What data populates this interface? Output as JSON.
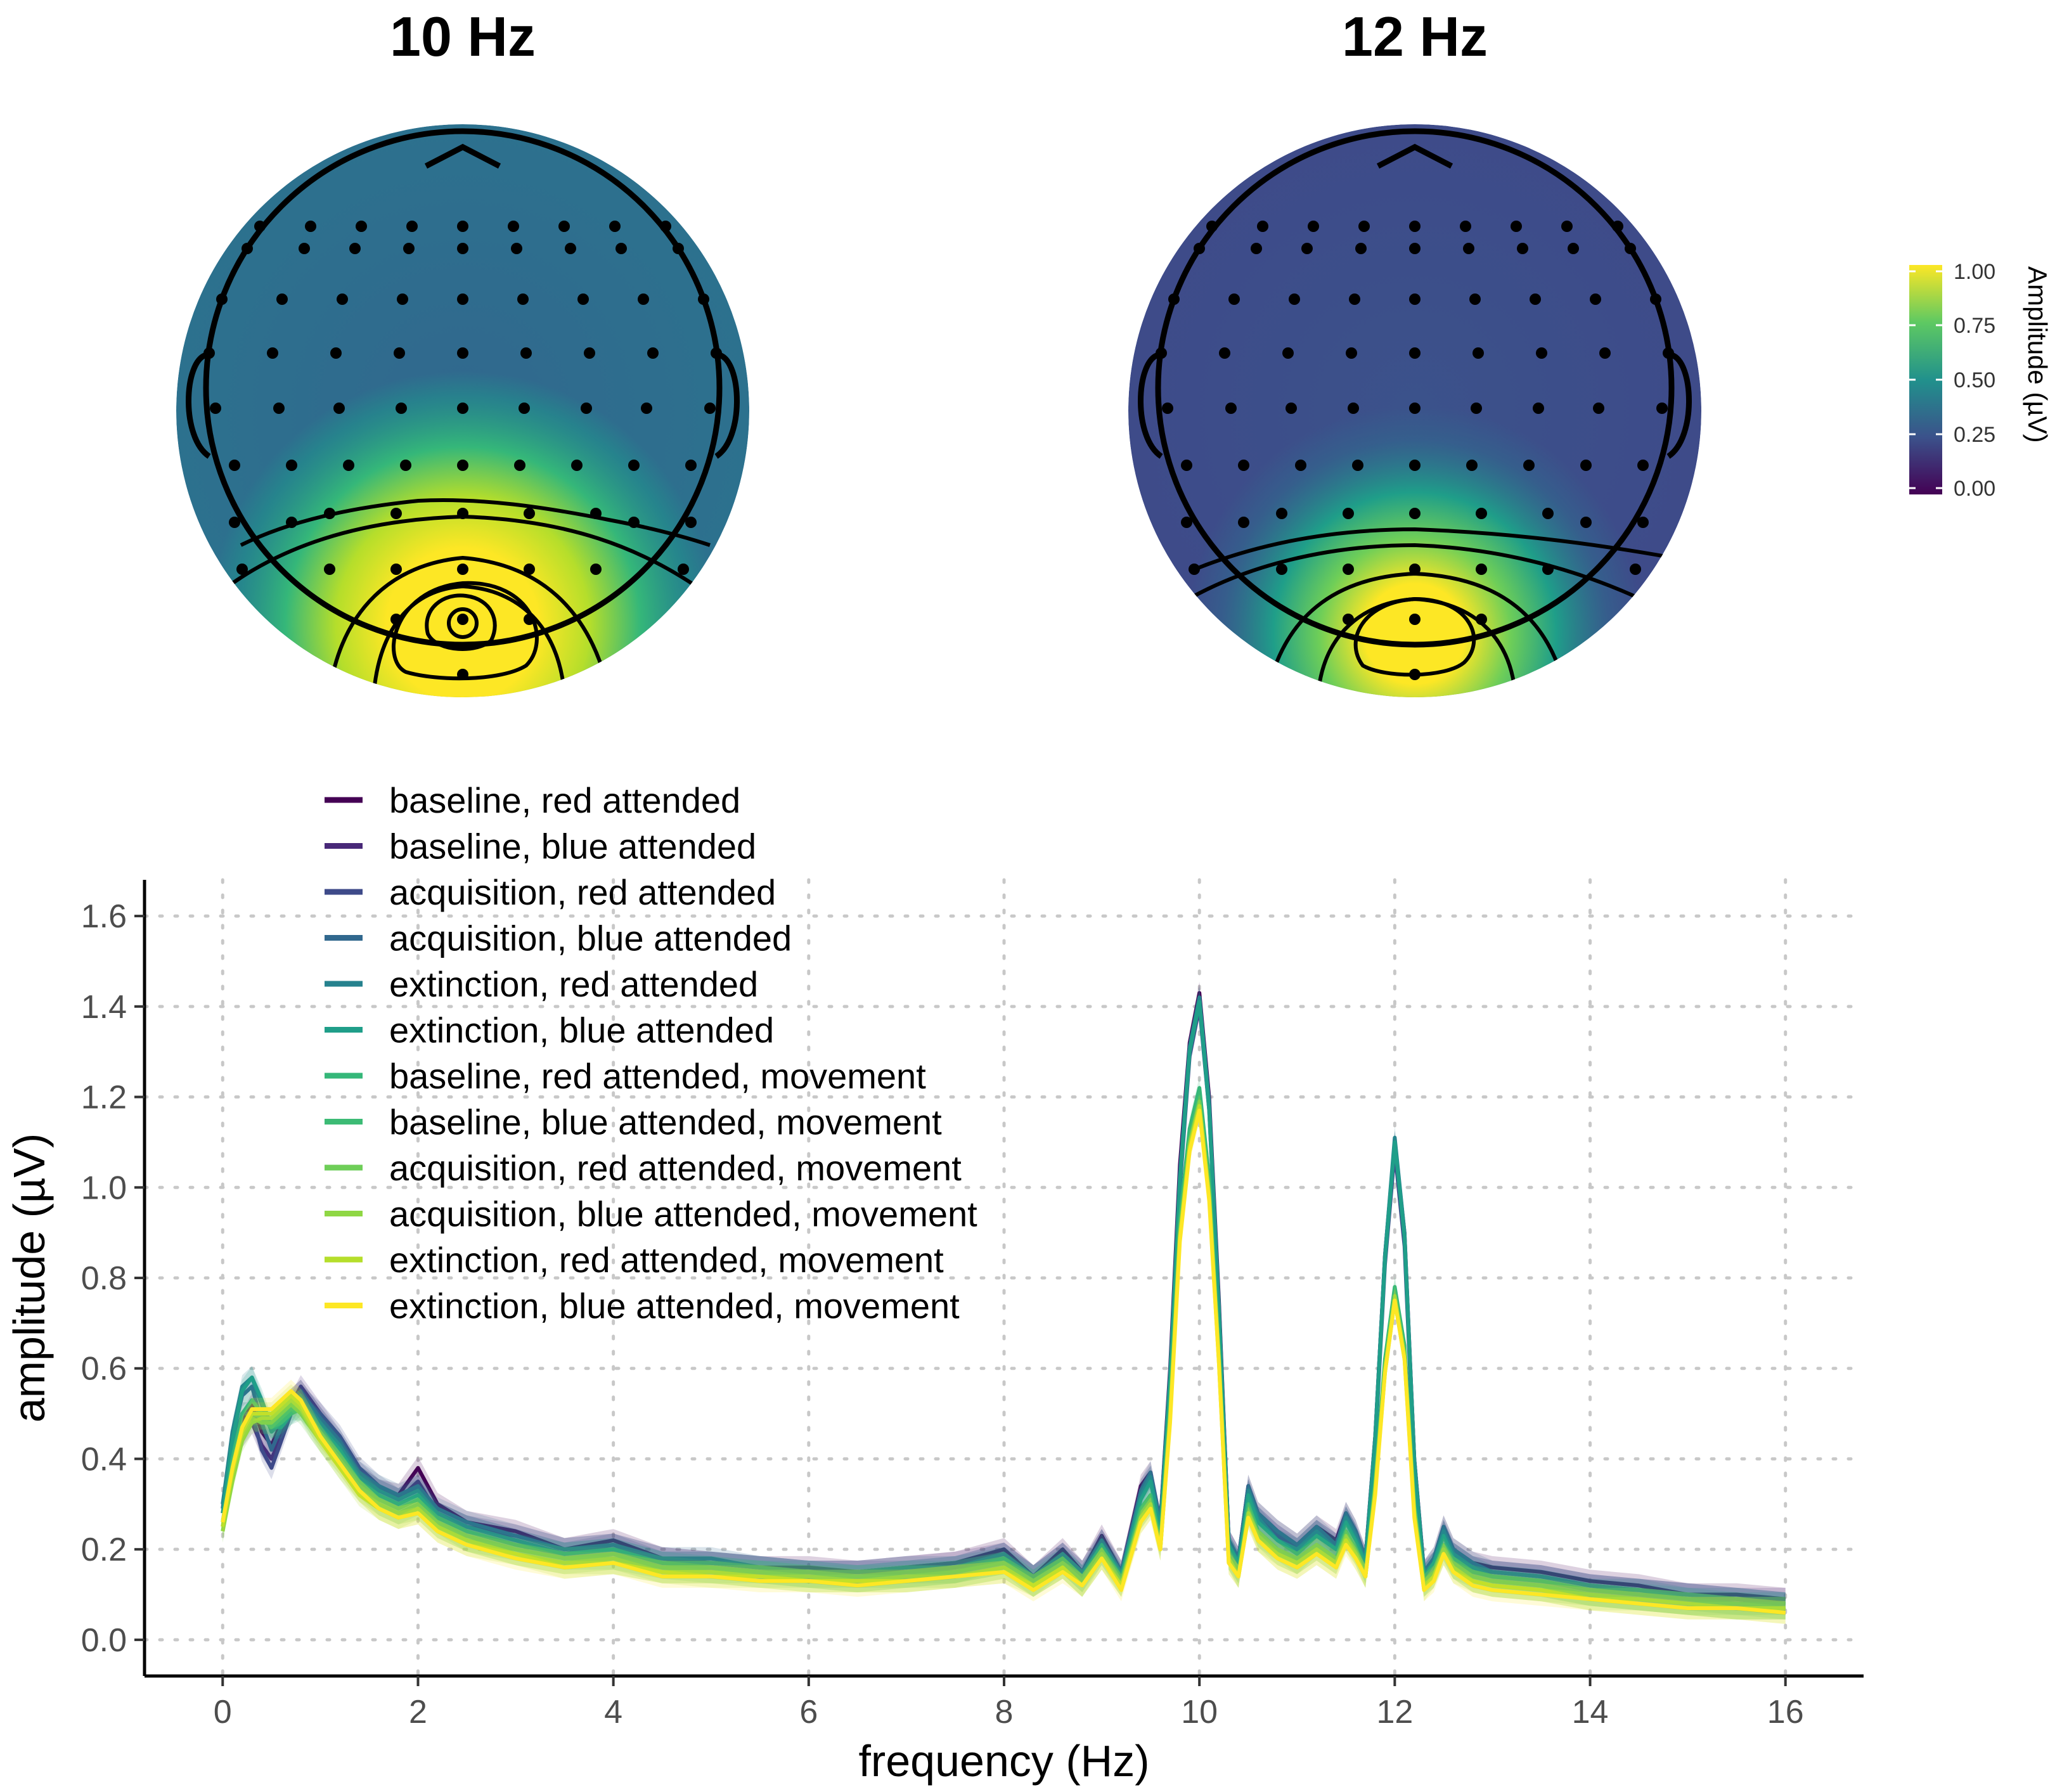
{
  "colors": {
    "viridis": [
      "#440154",
      "#482878",
      "#3e4a89",
      "#31688e",
      "#26828e",
      "#1f9e89",
      "#35b779",
      "#6ece58",
      "#b5de2b",
      "#fde725"
    ]
  },
  "topomaps": [
    {
      "title": "10 Hz"
    },
    {
      "title": "12 Hz"
    }
  ],
  "colorbar": {
    "title": "Amplitude (µV)",
    "ticks": [
      "1.00",
      "0.75",
      "0.50",
      "0.25",
      "0.00"
    ]
  },
  "chart_data": {
    "type": "line",
    "xlabel": "frequency (Hz)",
    "ylabel": "amplitude (µV)",
    "xlim": [
      -0.8,
      16.8
    ],
    "ylim": [
      -0.08,
      1.68
    ],
    "xticks": [
      0,
      2,
      4,
      6,
      8,
      10,
      12,
      14,
      16
    ],
    "yticks": [
      0.0,
      0.2,
      0.4,
      0.6,
      0.8,
      1.0,
      1.2,
      1.4,
      1.6
    ],
    "xtick_labels": [
      "0",
      "2",
      "4",
      "6",
      "8",
      "10",
      "12",
      "14",
      "16"
    ],
    "ytick_labels": [
      "0.0",
      "0.2",
      "0.4",
      "0.6",
      "0.8",
      "1.0",
      "1.2",
      "1.4",
      "1.6"
    ],
    "grid": "dotted",
    "legend_position": "top-left",
    "x": [
      0,
      0.1,
      0.2,
      0.3,
      0.4,
      0.5,
      0.6,
      0.7,
      0.8,
      0.9,
      1.0,
      1.2,
      1.4,
      1.6,
      1.8,
      2.0,
      2.2,
      2.5,
      3.0,
      3.5,
      4.0,
      4.5,
      5.0,
      5.5,
      6.0,
      6.5,
      7.0,
      7.5,
      8.0,
      8.3,
      8.6,
      8.8,
      9.0,
      9.2,
      9.4,
      9.5,
      9.6,
      9.7,
      9.8,
      9.9,
      10.0,
      10.1,
      10.2,
      10.3,
      10.4,
      10.5,
      10.6,
      10.8,
      11.0,
      11.2,
      11.4,
      11.5,
      11.6,
      11.7,
      11.8,
      11.9,
      12.0,
      12.1,
      12.2,
      12.3,
      12.4,
      12.5,
      12.6,
      12.8,
      13.0,
      13.5,
      14.0,
      14.5,
      15.0,
      15.5,
      16.0
    ],
    "series": [
      {
        "name": "baseline, red attended",
        "color": "#440154",
        "values": [
          0.29,
          0.4,
          0.48,
          0.52,
          0.46,
          0.43,
          0.48,
          0.53,
          0.55,
          0.52,
          0.49,
          0.43,
          0.36,
          0.33,
          0.32,
          0.38,
          0.3,
          0.26,
          0.24,
          0.2,
          0.22,
          0.18,
          0.17,
          0.16,
          0.16,
          0.15,
          0.16,
          0.17,
          0.2,
          0.14,
          0.2,
          0.15,
          0.23,
          0.15,
          0.34,
          0.37,
          0.26,
          0.6,
          1.05,
          1.32,
          1.43,
          1.2,
          0.75,
          0.22,
          0.18,
          0.34,
          0.28,
          0.24,
          0.21,
          0.25,
          0.22,
          0.28,
          0.24,
          0.18,
          0.45,
          0.85,
          1.1,
          0.9,
          0.4,
          0.15,
          0.18,
          0.25,
          0.2,
          0.17,
          0.16,
          0.15,
          0.13,
          0.12,
          0.1,
          0.1,
          0.09
        ]
      },
      {
        "name": "baseline, blue attended",
        "color": "#482878",
        "values": [
          0.28,
          0.38,
          0.45,
          0.48,
          0.43,
          0.4,
          0.45,
          0.52,
          0.56,
          0.53,
          0.5,
          0.44,
          0.37,
          0.33,
          0.31,
          0.35,
          0.28,
          0.25,
          0.23,
          0.2,
          0.21,
          0.18,
          0.17,
          0.16,
          0.15,
          0.15,
          0.16,
          0.17,
          0.19,
          0.14,
          0.19,
          0.15,
          0.22,
          0.15,
          0.33,
          0.36,
          0.25,
          0.58,
          1.02,
          1.3,
          1.41,
          1.18,
          0.73,
          0.22,
          0.18,
          0.33,
          0.27,
          0.23,
          0.2,
          0.24,
          0.21,
          0.27,
          0.23,
          0.18,
          0.44,
          0.84,
          1.09,
          0.88,
          0.39,
          0.15,
          0.17,
          0.24,
          0.19,
          0.16,
          0.15,
          0.14,
          0.12,
          0.11,
          0.1,
          0.09,
          0.09
        ]
      },
      {
        "name": "acquisition, red attended",
        "color": "#3e4a89",
        "values": [
          0.3,
          0.42,
          0.5,
          0.5,
          0.42,
          0.38,
          0.44,
          0.5,
          0.54,
          0.52,
          0.5,
          0.45,
          0.38,
          0.34,
          0.31,
          0.34,
          0.28,
          0.25,
          0.22,
          0.19,
          0.21,
          0.17,
          0.17,
          0.16,
          0.15,
          0.15,
          0.15,
          0.16,
          0.19,
          0.14,
          0.19,
          0.14,
          0.22,
          0.14,
          0.32,
          0.35,
          0.25,
          0.57,
          1.0,
          1.29,
          1.4,
          1.17,
          0.72,
          0.21,
          0.17,
          0.33,
          0.27,
          0.23,
          0.2,
          0.24,
          0.21,
          0.27,
          0.23,
          0.17,
          0.43,
          0.83,
          1.08,
          0.87,
          0.38,
          0.14,
          0.17,
          0.24,
          0.19,
          0.16,
          0.15,
          0.14,
          0.12,
          0.11,
          0.1,
          0.09,
          0.08
        ]
      },
      {
        "name": "acquisition, blue attended",
        "color": "#31688e",
        "values": [
          0.29,
          0.45,
          0.54,
          0.56,
          0.48,
          0.42,
          0.47,
          0.53,
          0.55,
          0.52,
          0.49,
          0.44,
          0.37,
          0.34,
          0.32,
          0.34,
          0.29,
          0.26,
          0.23,
          0.2,
          0.21,
          0.18,
          0.18,
          0.16,
          0.15,
          0.15,
          0.16,
          0.16,
          0.19,
          0.14,
          0.19,
          0.15,
          0.22,
          0.15,
          0.33,
          0.37,
          0.26,
          0.59,
          1.03,
          1.31,
          1.42,
          1.19,
          0.74,
          0.22,
          0.18,
          0.34,
          0.28,
          0.24,
          0.21,
          0.25,
          0.21,
          0.28,
          0.24,
          0.18,
          0.45,
          0.85,
          1.1,
          0.89,
          0.4,
          0.15,
          0.18,
          0.25,
          0.2,
          0.17,
          0.15,
          0.14,
          0.12,
          0.11,
          0.1,
          0.09,
          0.08
        ]
      },
      {
        "name": "extinction, red attended",
        "color": "#26828e",
        "values": [
          0.3,
          0.46,
          0.56,
          0.58,
          0.52,
          0.46,
          0.48,
          0.52,
          0.54,
          0.51,
          0.48,
          0.43,
          0.36,
          0.33,
          0.31,
          0.33,
          0.28,
          0.25,
          0.22,
          0.19,
          0.2,
          0.17,
          0.17,
          0.16,
          0.15,
          0.14,
          0.15,
          0.16,
          0.18,
          0.14,
          0.18,
          0.14,
          0.21,
          0.14,
          0.32,
          0.36,
          0.25,
          0.58,
          1.02,
          1.31,
          1.42,
          1.18,
          0.73,
          0.21,
          0.17,
          0.33,
          0.27,
          0.22,
          0.2,
          0.24,
          0.2,
          0.27,
          0.23,
          0.17,
          0.45,
          0.85,
          1.11,
          0.9,
          0.4,
          0.14,
          0.17,
          0.24,
          0.19,
          0.16,
          0.14,
          0.13,
          0.11,
          0.11,
          0.09,
          0.09,
          0.08
        ]
      },
      {
        "name": "extinction, blue attended",
        "color": "#1f9e89",
        "values": [
          0.28,
          0.44,
          0.55,
          0.58,
          0.53,
          0.47,
          0.47,
          0.5,
          0.52,
          0.5,
          0.47,
          0.42,
          0.35,
          0.32,
          0.3,
          0.32,
          0.27,
          0.24,
          0.21,
          0.19,
          0.2,
          0.17,
          0.16,
          0.15,
          0.15,
          0.14,
          0.15,
          0.15,
          0.18,
          0.13,
          0.18,
          0.14,
          0.21,
          0.14,
          0.31,
          0.35,
          0.24,
          0.57,
          1.01,
          1.3,
          1.41,
          1.17,
          0.72,
          0.21,
          0.17,
          0.32,
          0.26,
          0.22,
          0.19,
          0.23,
          0.2,
          0.26,
          0.22,
          0.17,
          0.44,
          0.84,
          1.1,
          0.89,
          0.39,
          0.14,
          0.17,
          0.23,
          0.18,
          0.15,
          0.14,
          0.13,
          0.11,
          0.1,
          0.09,
          0.08,
          0.08
        ]
      },
      {
        "name": "baseline, red attended, movement",
        "color": "#35b779",
        "values": [
          0.26,
          0.4,
          0.5,
          0.53,
          0.5,
          0.47,
          0.48,
          0.5,
          0.51,
          0.49,
          0.46,
          0.41,
          0.35,
          0.31,
          0.29,
          0.31,
          0.26,
          0.23,
          0.2,
          0.18,
          0.19,
          0.16,
          0.16,
          0.15,
          0.14,
          0.14,
          0.14,
          0.15,
          0.17,
          0.13,
          0.17,
          0.13,
          0.2,
          0.13,
          0.29,
          0.32,
          0.22,
          0.52,
          0.93,
          1.13,
          1.22,
          1.02,
          0.64,
          0.19,
          0.15,
          0.3,
          0.24,
          0.2,
          0.18,
          0.21,
          0.18,
          0.24,
          0.2,
          0.15,
          0.35,
          0.62,
          0.78,
          0.65,
          0.3,
          0.13,
          0.15,
          0.21,
          0.17,
          0.14,
          0.13,
          0.12,
          0.1,
          0.09,
          0.08,
          0.08,
          0.07
        ]
      },
      {
        "name": "baseline, blue attended, movement",
        "color": "#3cbb75",
        "values": [
          0.25,
          0.38,
          0.47,
          0.5,
          0.49,
          0.47,
          0.49,
          0.51,
          0.51,
          0.48,
          0.45,
          0.4,
          0.34,
          0.3,
          0.28,
          0.3,
          0.26,
          0.22,
          0.2,
          0.18,
          0.18,
          0.16,
          0.15,
          0.15,
          0.14,
          0.13,
          0.14,
          0.15,
          0.17,
          0.12,
          0.17,
          0.13,
          0.19,
          0.13,
          0.28,
          0.31,
          0.21,
          0.51,
          0.91,
          1.11,
          1.2,
          1.0,
          0.63,
          0.18,
          0.15,
          0.29,
          0.23,
          0.2,
          0.17,
          0.21,
          0.18,
          0.23,
          0.2,
          0.15,
          0.34,
          0.61,
          0.77,
          0.64,
          0.29,
          0.12,
          0.15,
          0.2,
          0.16,
          0.14,
          0.13,
          0.12,
          0.1,
          0.09,
          0.08,
          0.07,
          0.07
        ]
      },
      {
        "name": "acquisition, red attended, movement",
        "color": "#6ece58",
        "values": [
          0.24,
          0.36,
          0.45,
          0.49,
          0.48,
          0.48,
          0.5,
          0.52,
          0.5,
          0.47,
          0.44,
          0.39,
          0.33,
          0.3,
          0.28,
          0.29,
          0.25,
          0.22,
          0.19,
          0.17,
          0.18,
          0.15,
          0.15,
          0.14,
          0.14,
          0.13,
          0.14,
          0.14,
          0.16,
          0.12,
          0.16,
          0.12,
          0.19,
          0.12,
          0.27,
          0.3,
          0.21,
          0.5,
          0.9,
          1.1,
          1.19,
          0.99,
          0.62,
          0.18,
          0.14,
          0.28,
          0.23,
          0.19,
          0.17,
          0.2,
          0.17,
          0.23,
          0.19,
          0.14,
          0.34,
          0.6,
          0.76,
          0.63,
          0.29,
          0.12,
          0.14,
          0.2,
          0.16,
          0.13,
          0.12,
          0.11,
          0.1,
          0.09,
          0.08,
          0.07,
          0.07
        ]
      },
      {
        "name": "acquisition, blue attended, movement",
        "color": "#8fd744",
        "values": [
          0.24,
          0.35,
          0.44,
          0.48,
          0.49,
          0.49,
          0.51,
          0.53,
          0.51,
          0.47,
          0.44,
          0.38,
          0.33,
          0.29,
          0.27,
          0.29,
          0.25,
          0.22,
          0.19,
          0.17,
          0.17,
          0.15,
          0.15,
          0.14,
          0.13,
          0.13,
          0.13,
          0.14,
          0.16,
          0.12,
          0.16,
          0.12,
          0.18,
          0.12,
          0.27,
          0.3,
          0.2,
          0.49,
          0.89,
          1.09,
          1.18,
          0.98,
          0.62,
          0.18,
          0.14,
          0.28,
          0.22,
          0.19,
          0.17,
          0.2,
          0.17,
          0.22,
          0.19,
          0.14,
          0.33,
          0.6,
          0.76,
          0.63,
          0.28,
          0.12,
          0.14,
          0.19,
          0.16,
          0.13,
          0.12,
          0.11,
          0.09,
          0.09,
          0.08,
          0.07,
          0.07
        ]
      },
      {
        "name": "extinction, red attended, movement",
        "color": "#b5de2b",
        "values": [
          0.25,
          0.37,
          0.46,
          0.5,
          0.5,
          0.5,
          0.52,
          0.54,
          0.52,
          0.48,
          0.44,
          0.38,
          0.32,
          0.29,
          0.27,
          0.28,
          0.24,
          0.21,
          0.19,
          0.16,
          0.17,
          0.15,
          0.14,
          0.14,
          0.13,
          0.13,
          0.13,
          0.14,
          0.15,
          0.12,
          0.16,
          0.12,
          0.18,
          0.12,
          0.26,
          0.29,
          0.2,
          0.49,
          0.89,
          1.09,
          1.18,
          0.98,
          0.61,
          0.17,
          0.14,
          0.27,
          0.22,
          0.18,
          0.16,
          0.19,
          0.16,
          0.22,
          0.18,
          0.14,
          0.33,
          0.59,
          0.75,
          0.62,
          0.28,
          0.11,
          0.14,
          0.19,
          0.15,
          0.13,
          0.12,
          0.11,
          0.09,
          0.08,
          0.07,
          0.07,
          0.06
        ]
      },
      {
        "name": "extinction, blue attended, movement",
        "color": "#fde725",
        "values": [
          0.26,
          0.38,
          0.47,
          0.51,
          0.51,
          0.51,
          0.53,
          0.55,
          0.53,
          0.49,
          0.45,
          0.39,
          0.33,
          0.29,
          0.27,
          0.28,
          0.24,
          0.21,
          0.18,
          0.16,
          0.17,
          0.14,
          0.14,
          0.13,
          0.13,
          0.12,
          0.13,
          0.14,
          0.15,
          0.11,
          0.15,
          0.12,
          0.18,
          0.11,
          0.26,
          0.29,
          0.2,
          0.48,
          0.88,
          1.08,
          1.17,
          0.97,
          0.61,
          0.17,
          0.14,
          0.27,
          0.22,
          0.18,
          0.16,
          0.19,
          0.16,
          0.21,
          0.18,
          0.14,
          0.32,
          0.59,
          0.75,
          0.62,
          0.27,
          0.11,
          0.13,
          0.19,
          0.15,
          0.12,
          0.11,
          0.1,
          0.09,
          0.08,
          0.07,
          0.07,
          0.06
        ]
      }
    ]
  }
}
